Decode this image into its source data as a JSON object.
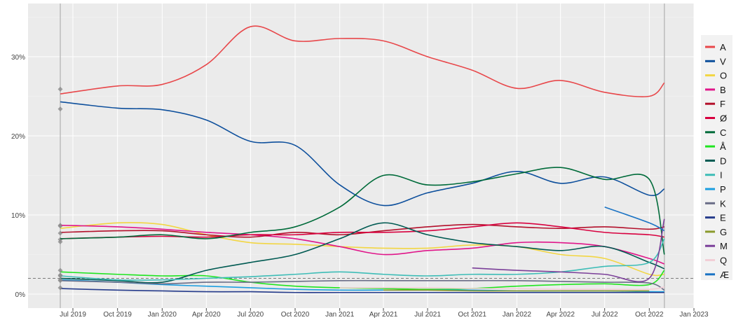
{
  "chart_data": {
    "type": "line",
    "title": "",
    "xlabel": "",
    "ylabel": "",
    "x_range": [
      "2019-05-15",
      "2023-01-01"
    ],
    "ylim": [
      0,
      35
    ],
    "y_ticks": [
      0,
      10,
      20,
      30
    ],
    "y_tick_labels": [
      "0%",
      "10%",
      "20%",
      "30%"
    ],
    "x_ticks": [
      "2019-07-01",
      "2019-10-01",
      "2020-01-01",
      "2020-04-01",
      "2020-07-01",
      "2020-10-01",
      "2021-01-01",
      "2021-04-01",
      "2021-07-01",
      "2021-10-01",
      "2022-01-01",
      "2022-04-01",
      "2022-07-01",
      "2022-10-01",
      "2023-01-01"
    ],
    "x_tick_labels": [
      "Jul 2019",
      "Oct 2019",
      "Jan 2020",
      "Apr 2020",
      "Jul 2020",
      "Oct 2020",
      "Jan 2021",
      "Apr 2021",
      "Jul 2021",
      "Oct 2021",
      "Jan 2022",
      "Apr 2022",
      "Jul 2022",
      "Oct 2022",
      "Jan 2023"
    ],
    "grid": true,
    "legend_placement": "right",
    "election_lines": [
      "2019-06-05",
      "2022-11-01"
    ],
    "threshold_line": 2,
    "x": [
      "2019-06-05",
      "2019-10-01",
      "2020-01-01",
      "2020-04-01",
      "2020-07-01",
      "2020-10-01",
      "2021-01-01",
      "2021-04-01",
      "2021-07-01",
      "2021-10-01",
      "2022-01-01",
      "2022-04-01",
      "2022-07-01",
      "2022-10-01",
      "2022-11-01"
    ],
    "series": [
      {
        "name": "A",
        "color": "#e8474a",
        "start": 25.9,
        "values": [
          25.3,
          26.3,
          26.5,
          29.0,
          33.8,
          32.0,
          32.3,
          32.0,
          30.0,
          28.3,
          26.0,
          27.0,
          25.5,
          25.0,
          26.7
        ]
      },
      {
        "name": "V",
        "color": "#0d4f9c",
        "start": 23.4,
        "values": [
          24.3,
          23.5,
          23.3,
          22.0,
          19.3,
          18.8,
          13.8,
          11.2,
          12.8,
          14.0,
          15.5,
          14.0,
          14.8,
          12.5,
          13.3
        ]
      },
      {
        "name": "O",
        "color": "#f2d643",
        "start": 8.7,
        "values": [
          8.3,
          9.0,
          8.8,
          7.5,
          6.5,
          6.3,
          6.0,
          5.8,
          5.8,
          6.2,
          6.0,
          5.0,
          4.5,
          2.5,
          2.5
        ]
      },
      {
        "name": "B",
        "color": "#e0168a",
        "start": 8.6,
        "values": [
          8.7,
          8.5,
          8.2,
          7.8,
          7.5,
          7.0,
          6.0,
          5.0,
          5.5,
          5.8,
          6.5,
          6.5,
          6.0,
          4.5,
          3.8
        ]
      },
      {
        "name": "F",
        "color": "#b3102b",
        "start": 7.7,
        "values": [
          7.8,
          8.0,
          8.0,
          7.5,
          7.2,
          7.8,
          7.5,
          8.0,
          8.5,
          8.8,
          8.5,
          8.3,
          8.5,
          8.2,
          8.5
        ]
      },
      {
        "name": "Ø",
        "color": "#d8003f",
        "start": 6.9,
        "values": [
          7.0,
          7.2,
          7.3,
          7.2,
          7.5,
          7.5,
          7.8,
          7.8,
          8.0,
          8.5,
          9.0,
          8.5,
          7.8,
          7.5,
          7.2
        ]
      },
      {
        "name": "C",
        "color": "#006b3a",
        "start": 6.6,
        "values": [
          7.0,
          7.2,
          7.5,
          7.0,
          7.8,
          8.5,
          11.0,
          15.0,
          13.8,
          14.2,
          15.2,
          16.0,
          14.5,
          14.5,
          5.0
        ]
      },
      {
        "name": "Å",
        "color": "#1fe51f",
        "start": 3.0,
        "values": [
          2.8,
          2.5,
          2.3,
          2.3,
          1.5,
          1.0,
          0.8,
          0.7,
          0.6,
          0.7,
          1.0,
          1.2,
          1.3,
          1.2,
          3.0
        ]
      },
      {
        "name": "D",
        "color": "#005a52",
        "start": 2.4,
        "values": [
          2.0,
          1.7,
          1.5,
          3.0,
          4.0,
          5.0,
          7.0,
          9.0,
          7.5,
          6.5,
          6.0,
          5.5,
          6.0,
          4.0,
          3.2
        ]
      },
      {
        "name": "I",
        "color": "#3ebdb7",
        "start": 2.3,
        "values": [
          2.3,
          1.8,
          1.8,
          2.0,
          2.2,
          2.5,
          2.8,
          2.5,
          2.3,
          2.5,
          2.5,
          2.8,
          3.5,
          4.0,
          7.0
        ]
      },
      {
        "name": "P",
        "color": "#1b9ee0",
        "start": 1.8,
        "values": [
          1.8,
          1.5,
          1.2,
          1.0,
          0.8,
          0.6,
          0.5,
          0.5,
          0.5,
          0.5,
          0.4,
          0.4,
          0.4,
          0.3,
          0.3
        ]
      },
      {
        "name": "K",
        "color": "#6a6d87",
        "start": 1.7,
        "values": [
          1.7,
          1.5,
          1.3,
          1.5,
          1.5,
          1.6,
          1.7,
          1.7,
          1.7,
          1.7,
          1.7,
          1.6,
          1.5,
          1.4,
          0.5
        ]
      },
      {
        "name": "E",
        "color": "#263c8c",
        "start": 0.8,
        "values": [
          0.7,
          0.5,
          0.4,
          0.3,
          0.3,
          0.2,
          0.2,
          0.2,
          0.2,
          0.2,
          0.2,
          0.2,
          0.2,
          0.2,
          0.2
        ]
      },
      {
        "name": "G",
        "color": "#8a9a2c",
        "values": [
          null,
          null,
          null,
          null,
          null,
          null,
          null,
          0.5,
          0.5,
          0.4,
          0.4,
          0.4,
          0.4,
          0.4,
          null
        ]
      },
      {
        "name": "M",
        "color": "#7b3f99",
        "values": [
          null,
          null,
          null,
          null,
          null,
          null,
          null,
          null,
          null,
          3.3,
          3.0,
          2.8,
          2.5,
          2.0,
          9.5
        ]
      },
      {
        "name": "Q",
        "color": "#f2cfd6",
        "values": [
          null,
          null,
          null,
          null,
          null,
          null,
          0.8,
          0.8,
          0.8,
          0.7,
          0.7,
          0.6,
          0.6,
          0.6,
          0.9
        ]
      },
      {
        "name": "Æ",
        "color": "#1a73c4",
        "values": [
          null,
          null,
          null,
          null,
          null,
          null,
          null,
          null,
          null,
          null,
          null,
          null,
          11.0,
          9.0,
          8.0
        ]
      }
    ]
  }
}
